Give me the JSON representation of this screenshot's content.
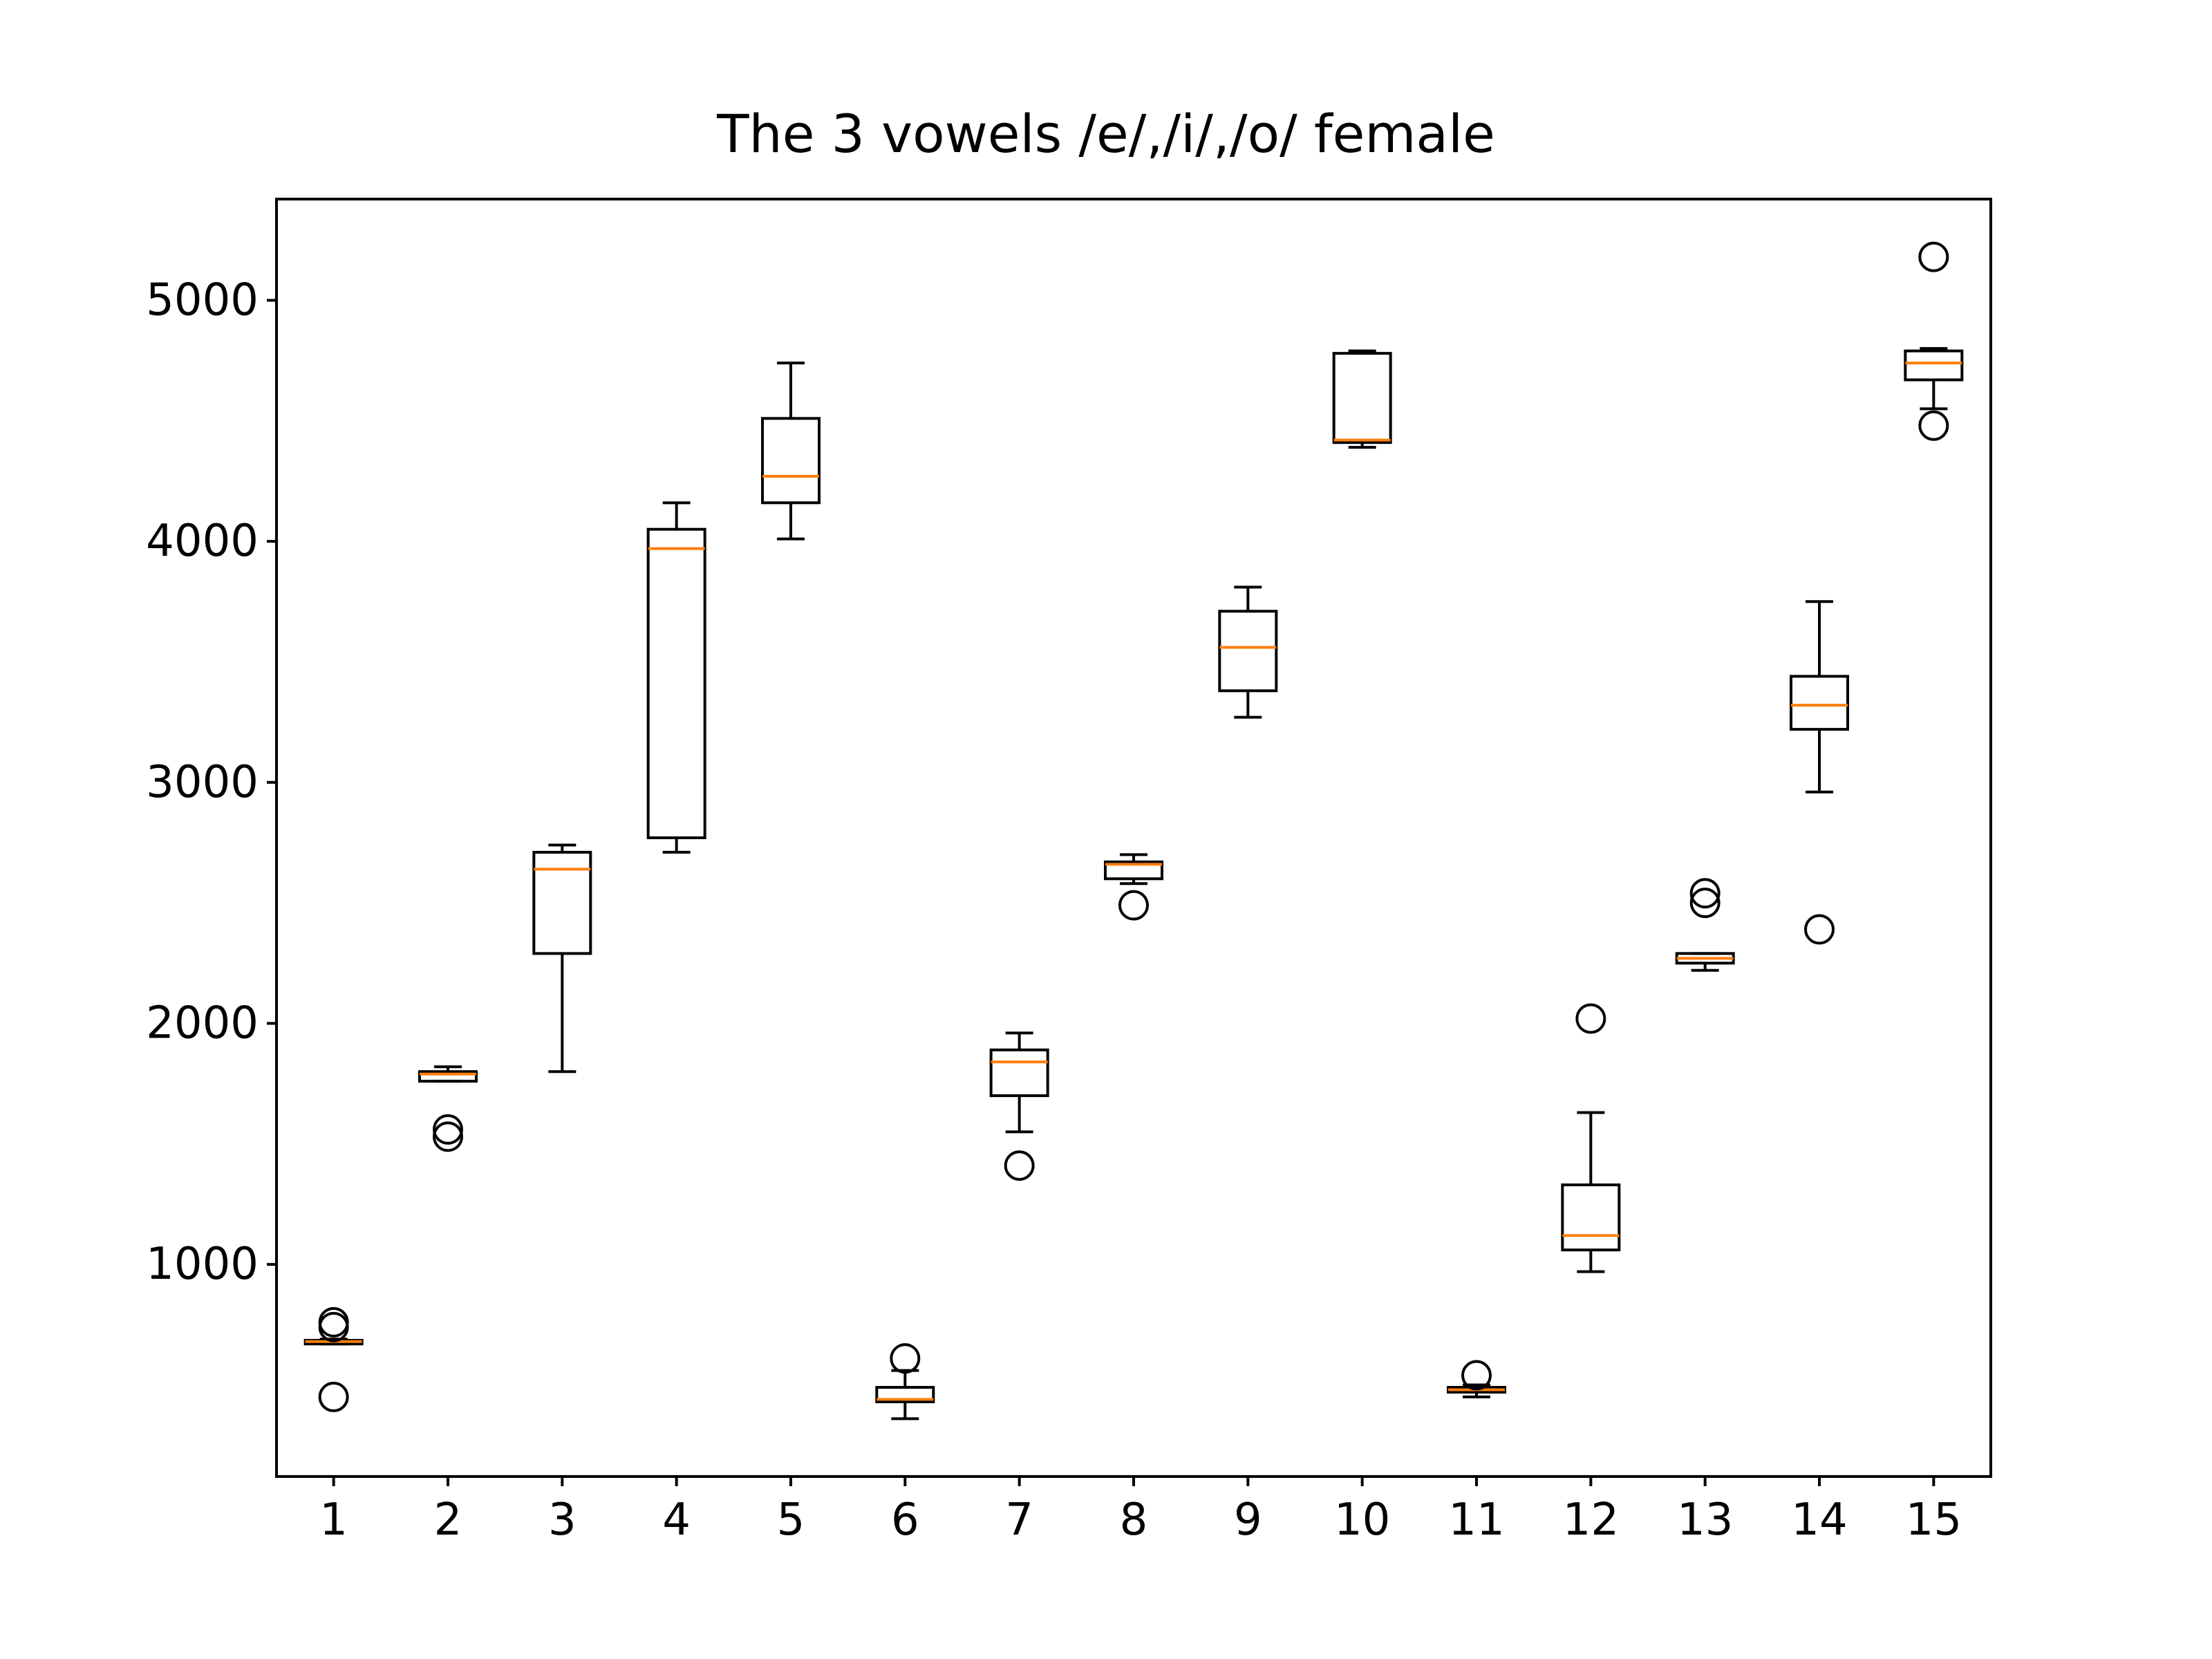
{
  "chart_data": {
    "type": "box",
    "title": "The 3 vowels /e/,/i/,/o/ female",
    "xlabel": "",
    "ylabel": "",
    "ylim": [
      120,
      5420
    ],
    "xlim": [
      0.5,
      15.5
    ],
    "yticks": [
      1000,
      2000,
      3000,
      4000,
      5000
    ],
    "grid": false,
    "colors": {
      "median": "#ff7f0e",
      "box": "#000000"
    },
    "categories": [
      "1",
      "2",
      "3",
      "4",
      "5",
      "6",
      "7",
      "8",
      "9",
      "10",
      "11",
      "12",
      "13",
      "14",
      "15"
    ],
    "boxes": [
      {
        "label": "1",
        "whislo": 670,
        "q1": 670,
        "med": 680,
        "q3": 685,
        "whishi": 690,
        "fliers": [
          760,
          740,
          450
        ]
      },
      {
        "label": "2",
        "whislo": 1760,
        "q1": 1760,
        "med": 1790,
        "q3": 1800,
        "whishi": 1820,
        "fliers": [
          1560,
          1530
        ]
      },
      {
        "label": "3",
        "whislo": 1800,
        "q1": 2290,
        "med": 2640,
        "q3": 2710,
        "whishi": 2740,
        "fliers": []
      },
      {
        "label": "4",
        "whislo": 2710,
        "q1": 2770,
        "med": 3970,
        "q3": 4050,
        "whishi": 4160,
        "fliers": []
      },
      {
        "label": "5",
        "whislo": 4010,
        "q1": 4160,
        "med": 4270,
        "q3": 4510,
        "whishi": 4740,
        "fliers": []
      },
      {
        "label": "6",
        "whislo": 360,
        "q1": 430,
        "med": 440,
        "q3": 490,
        "whishi": 560,
        "fliers": [
          610
        ]
      },
      {
        "label": "7",
        "whislo": 1550,
        "q1": 1700,
        "med": 1840,
        "q3": 1890,
        "whishi": 1960,
        "fliers": [
          1410
        ]
      },
      {
        "label": "8",
        "whislo": 2580,
        "q1": 2600,
        "med": 2660,
        "q3": 2670,
        "whishi": 2700,
        "fliers": [
          2490
        ]
      },
      {
        "label": "9",
        "whislo": 3270,
        "q1": 3380,
        "med": 3560,
        "q3": 3710,
        "whishi": 3810,
        "fliers": []
      },
      {
        "label": "10",
        "whislo": 4390,
        "q1": 4410,
        "med": 4420,
        "q3": 4780,
        "whishi": 4790,
        "fliers": []
      },
      {
        "label": "11",
        "whislo": 450,
        "q1": 470,
        "med": 480,
        "q3": 490,
        "whishi": 500,
        "fliers": [
          540
        ]
      },
      {
        "label": "12",
        "whislo": 970,
        "q1": 1060,
        "med": 1120,
        "q3": 1330,
        "whishi": 1630,
        "fliers": [
          2020
        ]
      },
      {
        "label": "13",
        "whislo": 2220,
        "q1": 2250,
        "med": 2270,
        "q3": 2290,
        "whishi": 2290,
        "fliers": [
          2540,
          2500
        ]
      },
      {
        "label": "14",
        "whislo": 2960,
        "q1": 3220,
        "med": 3320,
        "q3": 3440,
        "whishi": 3750,
        "fliers": [
          2390
        ]
      },
      {
        "label": "15",
        "whislo": 4550,
        "q1": 4670,
        "med": 4740,
        "q3": 4790,
        "whishi": 4800,
        "fliers": [
          5180,
          4480
        ]
      }
    ]
  }
}
